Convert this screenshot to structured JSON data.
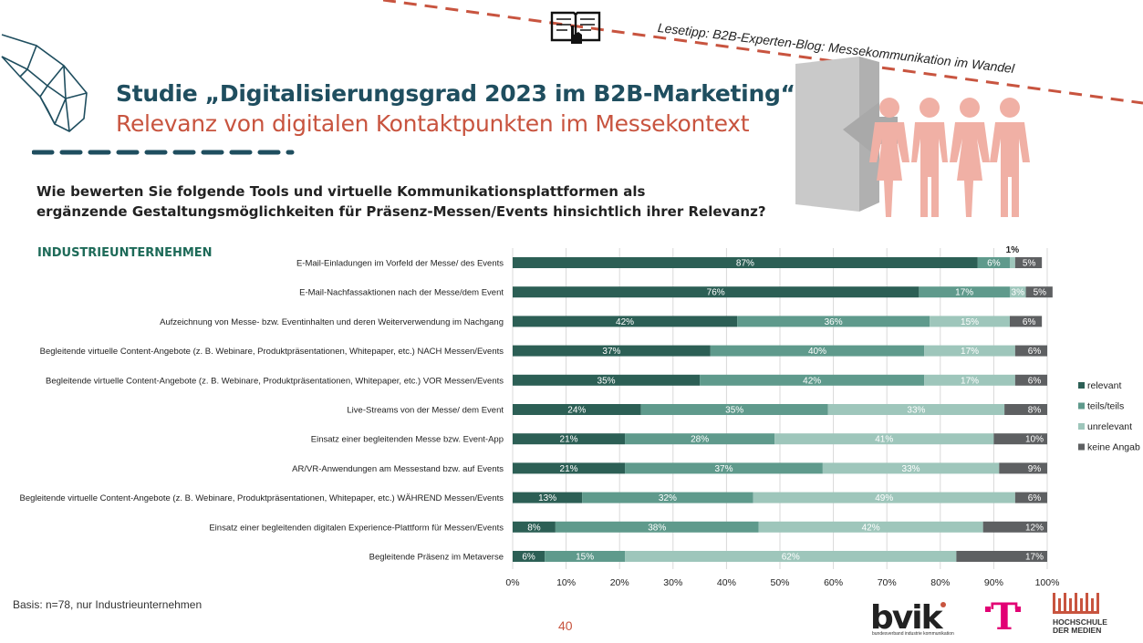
{
  "header": {
    "title": "Studie „Digitalisierungsgrad 2023 im B2B-Marketing“",
    "subtitle": "Relevanz von digitalen Kontaktpunkten im Messekontext",
    "tip": "Lesetipp: B2B-Experten-Blog: Messekommunikation im Wandel"
  },
  "question": {
    "line1": "Wie bewerten Sie folgende Tools und virtuelle Kommunikationsplattformen als",
    "line2": "ergänzende Gestaltungsmöglichkeiten für Präsenz-Messen/Events hinsichtlich ihrer Relevanz?"
  },
  "segment_label": "INDUSTRIEUNTERNEHMEN",
  "basis": "Basis: n=78, nur Industrieunternehmen",
  "page_number": "40",
  "logos": {
    "bvik": "bvik",
    "bvik_sub": "bundesverband industrie kommunikation",
    "telekom": "T",
    "hdm_line1": "HOCHSCHULE",
    "hdm_line2": "DER MEDIEN"
  },
  "icons": {
    "reading": "book-with-pointer-icon",
    "people": "people-group-icon",
    "brain": "brain-network-icon",
    "door": "door-arrow-icon"
  },
  "colors": {
    "relevant": "#2c5f55",
    "teils": "#5f9a8c",
    "unrelevant": "#9ec6bb",
    "keine": "#5e6062",
    "title": "#1f4e5f",
    "accent": "#c8543f"
  },
  "chart_data": {
    "type": "bar",
    "orientation": "horizontal",
    "stacked": true,
    "categories": [
      "E-Mail-Einladungen im Vorfeld der Messe/ des Events",
      "E-Mail-Nachfassaktionen nach der Messe/dem Event",
      "Aufzeichnung von Messe- bzw. Eventinhalten und deren Weiterverwendung im Nachgang",
      "Begleitende virtuelle Content-Angebote (z. B. Webinare, Produktpräsentationen, Whitepaper, etc.) NACH Messen/Events",
      "Begleitende virtuelle Content-Angebote (z. B. Webinare, Produktpräsentationen, Whitepaper, etc.) VOR Messen/Events",
      "Live-Streams von der Messe/ dem Event",
      "Einsatz einer begleitenden Messe bzw. Event-App",
      "AR/VR-Anwendungen am Messestand bzw. auf Events",
      "Begleitende virtuelle Content-Angebote (z. B. Webinare, Produktpräsentationen, Whitepaper, etc.) WÄHREND Messen/Events",
      "Einsatz einer begleitenden digitalen Experience-Plattform für Messen/Events",
      "Begleitende Präsenz im Metaverse"
    ],
    "series": [
      {
        "name": "relevant",
        "values": [
          87,
          76,
          42,
          37,
          35,
          24,
          21,
          21,
          13,
          8,
          6
        ]
      },
      {
        "name": "teils/teils",
        "values": [
          6,
          17,
          36,
          40,
          42,
          35,
          28,
          37,
          32,
          38,
          15
        ]
      },
      {
        "name": "unrelevant",
        "values": [
          1,
          3,
          15,
          17,
          17,
          33,
          41,
          33,
          49,
          42,
          62
        ]
      },
      {
        "name": "keine Angab",
        "values": [
          5,
          5,
          6,
          6,
          6,
          8,
          10,
          9,
          6,
          12,
          17
        ]
      }
    ],
    "value_labels": [
      [
        "87%",
        "6%",
        "",
        "5%"
      ],
      [
        "76%",
        "17%",
        "3%",
        "5%"
      ],
      [
        "42%",
        "36%",
        "15%",
        "6%"
      ],
      [
        "37%",
        "40%",
        "17%",
        "6%"
      ],
      [
        "35%",
        "42%",
        "17%",
        "6%"
      ],
      [
        "24%",
        "35%",
        "33%",
        "8%"
      ],
      [
        "21%",
        "28%",
        "41%",
        "10%"
      ],
      [
        "21%",
        "37%",
        "33%",
        "9%"
      ],
      [
        "13%",
        "32%",
        "49%",
        "6%"
      ],
      [
        "8%",
        "38%",
        "42%",
        "12%"
      ],
      [
        "6%",
        "15%",
        "62%",
        "17%"
      ]
    ],
    "annotation": "1%",
    "x_ticks": [
      "0%",
      "10%",
      "20%",
      "30%",
      "40%",
      "50%",
      "60%",
      "70%",
      "80%",
      "90%",
      "100%"
    ],
    "xlim": [
      0,
      100
    ],
    "grid": true,
    "legend": "right",
    "title": "",
    "xlabel": "",
    "ylabel": ""
  }
}
